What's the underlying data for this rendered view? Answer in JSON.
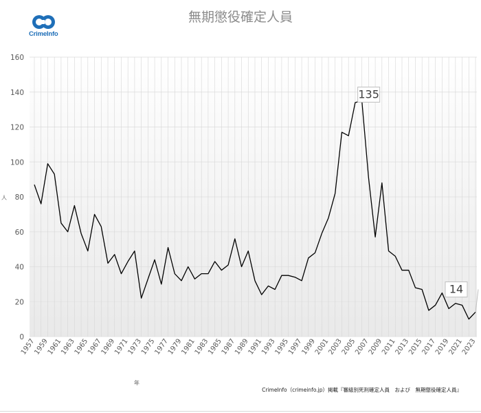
{
  "logo": {
    "text": "CrimeInfo",
    "color": "#1f6fb8"
  },
  "footer": {
    "source": "CrimeInfo（crimeinfo.jp）掲載『審級別死刑確定人員　および　無期懲役確定人員』"
  },
  "chart_data": {
    "type": "line",
    "title": "無期懲役確定人員",
    "xlabel": "年",
    "ylabel": "人",
    "ylim": [
      0,
      160
    ],
    "yticks": [
      0,
      20,
      40,
      60,
      80,
      100,
      120,
      140,
      160
    ],
    "xlim": [
      1957,
      2023
    ],
    "xticks": [
      1957,
      1959,
      1961,
      1963,
      1965,
      1967,
      1969,
      1971,
      1973,
      1975,
      1977,
      1979,
      1981,
      1983,
      1985,
      1987,
      1989,
      1991,
      1993,
      1995,
      1997,
      1999,
      2001,
      2003,
      2005,
      2007,
      2009,
      2011,
      2013,
      2015,
      2017,
      2019,
      2021,
      2023
    ],
    "grid": true,
    "line_color": "#000000",
    "series": [
      {
        "x": [
          1957,
          1958,
          1959,
          1960,
          1961,
          1962,
          1963,
          1964,
          1965,
          1966,
          1967,
          1968,
          1969,
          1970,
          1971,
          1972,
          1973,
          1974,
          1975,
          1976,
          1977,
          1978,
          1979,
          1980,
          1981,
          1982,
          1983,
          1984,
          1985,
          1986,
          1987,
          1988,
          1989,
          1990,
          1991,
          1992,
          1993,
          1994,
          1995,
          1996,
          1997,
          1998,
          1999,
          2000,
          2001,
          2002,
          2003,
          2004,
          2005,
          2006,
          2007,
          2008,
          2009,
          2010,
          2011,
          2012,
          2013,
          2014,
          2015,
          2016,
          2017,
          2018,
          2019,
          2020,
          2021,
          2022,
          2023
        ],
        "values": [
          87,
          76,
          99,
          93,
          65,
          60,
          75,
          59,
          49,
          70,
          63,
          42,
          47,
          36,
          43,
          49,
          22,
          33,
          44,
          30,
          51,
          36,
          32,
          40,
          33,
          36,
          36,
          43,
          38,
          41,
          56,
          40,
          49,
          32,
          24,
          29,
          27,
          35,
          35,
          34,
          32,
          45,
          48,
          59,
          68,
          82,
          117,
          115,
          134,
          135,
          91,
          57,
          88,
          49,
          46,
          38,
          38,
          28,
          27,
          15,
          18,
          25,
          16,
          19,
          18,
          10,
          14
        ]
      }
    ],
    "annotations": [
      {
        "x": 2006,
        "value": 135,
        "label": "135"
      },
      {
        "x": 2023,
        "value": 14,
        "label": "14"
      }
    ]
  }
}
